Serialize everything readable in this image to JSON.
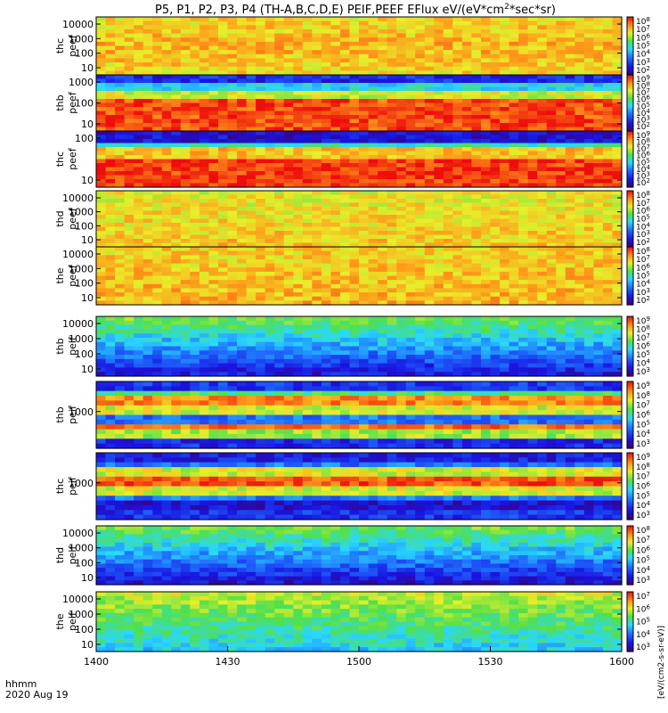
{
  "chart_data": {
    "type": "heatmap",
    "title": "P5, P1, P2, P3, P4 (TH-A,B,C,D,E) PEIF,PEEF EFlux eV/(eV*cm2*sec*sr)",
    "title_main": "P5, P1, P2, P3, P4 (TH-A,B,C,D,E) PEIF,PEEF EFlux eV/(eV*cm",
    "title_sup": "2",
    "title_tail": "*sec*sr)",
    "xlabel_line1": "hhmm",
    "xlabel_line2": "2020 Aug 19",
    "x_ticks": [
      "1400",
      "1430",
      "1500",
      "1530",
      "1600"
    ],
    "colorbar_unit": "[eV/(cm2-s-sr-eV)]",
    "colorbar_tick_base": "10",
    "panels": [
      {
        "name": "thc peef",
        "label1": "thc",
        "label2": "peef",
        "y_ticks": [
          "10000",
          "1000",
          "100",
          "10"
        ],
        "cbar_exps": [
          "8",
          "7",
          "6",
          "5",
          "4",
          "3",
          "2"
        ],
        "dominant": "orange/red"
      },
      {
        "name": "thb peef",
        "label1": "thb",
        "label2": "peef",
        "y_ticks": [
          "1000",
          "100",
          "10"
        ],
        "cbar_exps": [
          "9",
          "8",
          "7",
          "6",
          "5",
          "4",
          "3",
          "2"
        ],
        "dominant": "red core with blue top band"
      },
      {
        "name": "thc peef",
        "label1": "thc",
        "label2": "peef",
        "y_ticks": [
          "100",
          "10"
        ],
        "cbar_exps": [
          "9",
          "8",
          "7",
          "6",
          "5",
          "4",
          "3",
          "2"
        ],
        "dominant": "red/yellow with blue top band"
      },
      {
        "name": "thd peef",
        "label1": "thd",
        "label2": "peef",
        "y_ticks": [
          "10000",
          "1000",
          "100",
          "10"
        ],
        "cbar_exps": [
          "8",
          "7",
          "6",
          "5",
          "4",
          "3",
          "2"
        ],
        "dominant": "orange/yellow"
      },
      {
        "name": "the peef",
        "label1": "the",
        "label2": "peef",
        "y_ticks": [
          "10000",
          "1000",
          "100",
          "10"
        ],
        "cbar_exps": [
          "8",
          "7",
          "6",
          "5",
          "4",
          "3",
          "2"
        ],
        "dominant": "orange/yellow"
      },
      {
        "name": "thb peif",
        "label1": "thb",
        "label2": "peif",
        "y_ticks": [
          "10000",
          "1000",
          "100",
          "10"
        ],
        "cbar_exps": [
          "9",
          "8",
          "7",
          "6",
          "5",
          "4",
          "3"
        ],
        "dominant": "green top, blue bottom"
      },
      {
        "name": "thb peif",
        "label1": "thb",
        "label2": "peif",
        "y_ticks": [
          "1000"
        ],
        "cbar_exps": [
          "9",
          "8",
          "7",
          "6",
          "5",
          "4",
          "3"
        ],
        "dominant": "striped red/yellow/blue"
      },
      {
        "name": "thc peif",
        "label1": "thc",
        "label2": "peif",
        "y_ticks": [
          "1000"
        ],
        "cbar_exps": [
          "9",
          "8",
          "7",
          "6",
          "5",
          "4",
          "3"
        ],
        "dominant": "striped red/yellow/blue"
      },
      {
        "name": "thd peif",
        "label1": "thd",
        "label2": "peif",
        "y_ticks": [
          "10000",
          "1000",
          "100",
          "10"
        ],
        "cbar_exps": [
          "8",
          "7",
          "6",
          "5",
          "4",
          "3"
        ],
        "dominant": "green top, blue bottom"
      },
      {
        "name": "the peif",
        "label1": "the",
        "label2": "peif",
        "y_ticks": [
          "10000",
          "1000",
          "100",
          "10"
        ],
        "cbar_exps": [
          "7",
          "6",
          "5",
          "4",
          "3"
        ],
        "dominant": "yellow/green"
      }
    ]
  }
}
